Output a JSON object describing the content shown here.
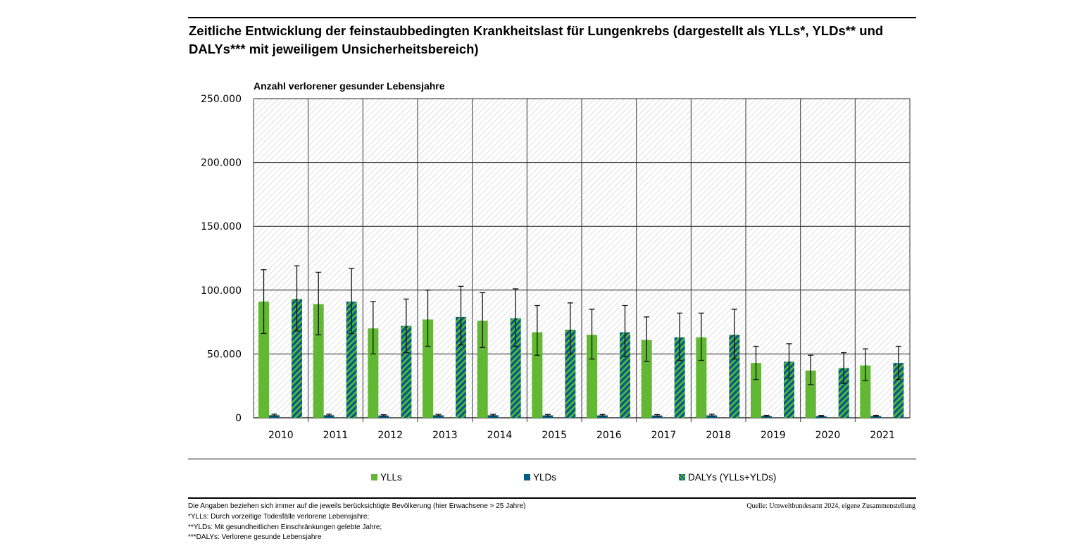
{
  "title": "Zeitliche Entwicklung der feinstaubbedingten Krankheitslast für Lungenkrebs (dargestellt als YLLs*, YLDs** und DALYs*** mit jeweiligem Unsicherheitsbereich)",
  "footnotes": [
    "Die Angaben beziehen sich immer auf die jeweils berücksichtigte Bevölkerung (hier Erwachsene > 25 Jahre)",
    "*YLLs: Durch vorzeitige Todesfälle verlorene Lebensjahre;",
    "**YLDs: Mit gesundheitlichen Einschränkungen gelebte Jahre;",
    "***DALYs: Verlorene gesunde Lebensjahre"
  ],
  "source": "Quelle: Umweltbundesamt 2024, eigene Zusammenstellung",
  "colors": {
    "yll": "#62b832",
    "yld": "#005f85"
  },
  "chart_data": {
    "type": "bar",
    "title": "Zeitliche Entwicklung der feinstaubbedingten Krankheitslast für Lungenkrebs",
    "ylabel": "Anzahl verlorener gesunder Lebensjahre",
    "xlabel": "",
    "ylim": [
      0,
      250000
    ],
    "yticks": [
      0,
      50000,
      100000,
      150000,
      200000,
      250000
    ],
    "ytick_labels": [
      "0",
      "50.000",
      "100.000",
      "150.000",
      "200.000",
      "250.000"
    ],
    "grid": true,
    "legend_position": "bottom",
    "categories": [
      "2010",
      "2011",
      "2012",
      "2013",
      "2014",
      "2015",
      "2016",
      "2017",
      "2018",
      "2019",
      "2020",
      "2021"
    ],
    "series": [
      {
        "name": "YLLs",
        "values": [
          91000,
          89000,
          70000,
          77000,
          76000,
          67000,
          65000,
          61000,
          63000,
          43000,
          37000,
          41000
        ],
        "lower": [
          66000,
          65000,
          50000,
          56000,
          55000,
          49000,
          46000,
          44000,
          45000,
          30000,
          26000,
          29000
        ],
        "upper": [
          116000,
          114000,
          91000,
          100000,
          98000,
          88000,
          85000,
          79000,
          82000,
          56000,
          49000,
          54000
        ]
      },
      {
        "name": "YLDs",
        "values": [
          2000,
          2000,
          1800,
          2000,
          2000,
          1900,
          1900,
          1800,
          1900,
          1400,
          1300,
          1400
        ],
        "lower": [
          1500,
          1500,
          1300,
          1500,
          1500,
          1400,
          1400,
          1300,
          1400,
          1000,
          900,
          1000
        ],
        "upper": [
          2800,
          2800,
          2400,
          2700,
          2700,
          2600,
          2600,
          2500,
          2800,
          1900,
          1800,
          1900
        ]
      },
      {
        "name": "DALYs (YLLs+YLDs)",
        "values": [
          93000,
          91000,
          72000,
          79000,
          78000,
          69000,
          67000,
          63000,
          65000,
          44000,
          39000,
          43000
        ],
        "lower": [
          68000,
          66000,
          51000,
          57000,
          56000,
          50000,
          48000,
          45000,
          46000,
          31000,
          27000,
          30000
        ],
        "upper": [
          119000,
          117000,
          93000,
          103000,
          101000,
          90000,
          88000,
          82000,
          85000,
          58000,
          51000,
          56000
        ]
      }
    ]
  }
}
